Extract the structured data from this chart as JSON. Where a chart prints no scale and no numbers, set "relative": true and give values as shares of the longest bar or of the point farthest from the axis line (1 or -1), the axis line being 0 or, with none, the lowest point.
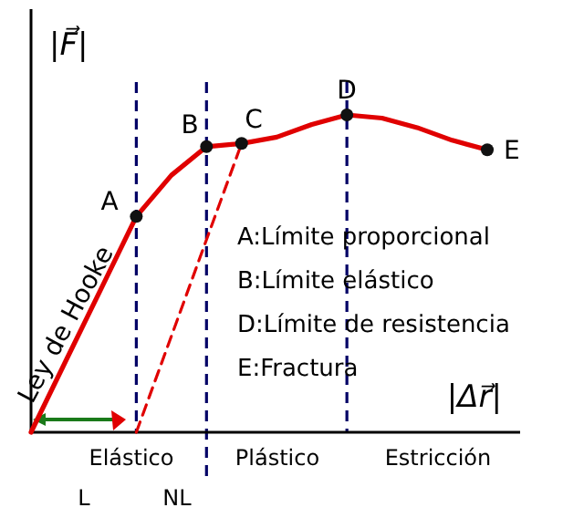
{
  "chart_data": {
    "type": "line",
    "relative": true,
    "xlabel": "|Δr⃗|",
    "ylabel": "|F⃗|",
    "categories": [
      null,
      null,
      null,
      null,
      null,
      null,
      null,
      null,
      null,
      null,
      null,
      null,
      null,
      null
    ],
    "series": [
      {
        "color": "#e00000",
        "values": [
          0,
          0.227,
          0.453,
          0.68,
          0.81,
          0.9,
          0.91,
          0.93,
          0.97,
          1.0,
          0.99,
          0.96,
          0.92,
          0.89
        ],
        "line_style": "solid"
      },
      {
        "color": "#e00000",
        "values": [
          null,
          null,
          null,
          0,
          0.303,
          0.607,
          0.91,
          null,
          null,
          null,
          null,
          null,
          null,
          null
        ],
        "line_style": "dashed"
      }
    ],
    "grid": "x",
    "annotations": [
      "Ley de Hooke",
      "A:Límite proporcional",
      "B:Límite elástico",
      "D:Límite de resistencia",
      "E:Fractura",
      "Elástico",
      "Plástico",
      "Estricción",
      "L",
      "NL",
      "A",
      "B",
      "C",
      "D",
      "E"
    ]
  }
}
